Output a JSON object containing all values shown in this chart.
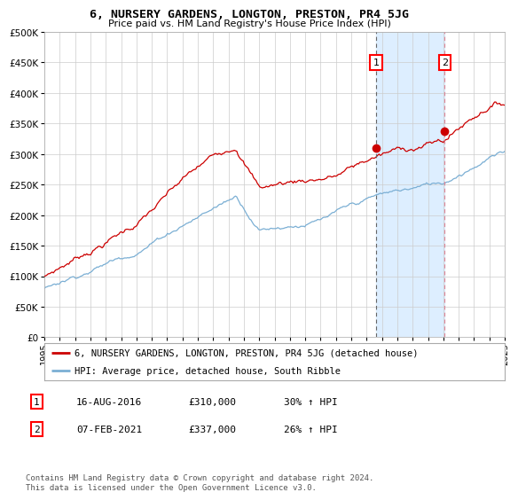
{
  "title": "6, NURSERY GARDENS, LONGTON, PRESTON, PR4 5JG",
  "subtitle": "Price paid vs. HM Land Registry's House Price Index (HPI)",
  "ytick_values": [
    0,
    50000,
    100000,
    150000,
    200000,
    250000,
    300000,
    350000,
    400000,
    450000,
    500000
  ],
  "xstart_year": 1995,
  "xend_year": 2025,
  "event1_date": 2016.62,
  "event1_value": 310000,
  "event1_label": "1",
  "event1_text": "16-AUG-2016",
  "event1_price": "£310,000",
  "event1_hpi": "30% ↑ HPI",
  "event2_date": 2021.09,
  "event2_value": 337000,
  "event2_label": "2",
  "event2_text": "07-FEB-2021",
  "event2_price": "£337,000",
  "event2_hpi": "26% ↑ HPI",
  "line1_color": "#cc0000",
  "line2_color": "#7bafd4",
  "shade_color": "#ddeeff",
  "grid_color": "#cccccc",
  "bg_color": "#ffffff",
  "legend1_label": "6, NURSERY GARDENS, LONGTON, PRESTON, PR4 5JG (detached house)",
  "legend2_label": "HPI: Average price, detached house, South Ribble",
  "footnote": "Contains HM Land Registry data © Crown copyright and database right 2024.\nThis data is licensed under the Open Government Licence v3.0."
}
